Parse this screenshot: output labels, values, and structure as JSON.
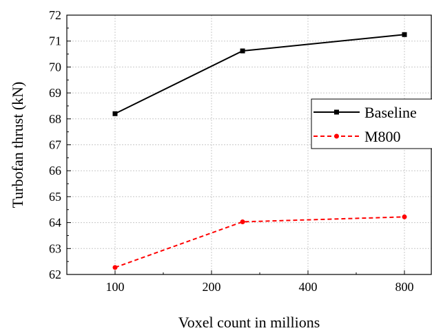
{
  "chart_data": {
    "type": "line",
    "title": "",
    "xlabel": "Voxel count in millions",
    "ylabel": "Turbofan thrust (kN)",
    "categories": [
      "100",
      "200",
      "400",
      "800"
    ],
    "x_scale": "log2",
    "ylim": [
      62,
      72
    ],
    "yticks": [
      "62",
      "63",
      "64",
      "65",
      "66",
      "67",
      "68",
      "69",
      "70",
      "71",
      "72"
    ],
    "grid": true,
    "legend_position": "right",
    "series": [
      {
        "name": "Baseline",
        "color": "#000000",
        "line_style": "solid",
        "marker": "square",
        "x": [
          100,
          250,
          800
        ],
        "values": [
          68.2,
          70.62,
          71.25
        ]
      },
      {
        "name": "M800",
        "color": "#ff0000",
        "line_style": "dashed",
        "marker": "circle",
        "x": [
          100,
          250,
          800
        ],
        "values": [
          62.27,
          64.03,
          64.22
        ]
      }
    ]
  }
}
